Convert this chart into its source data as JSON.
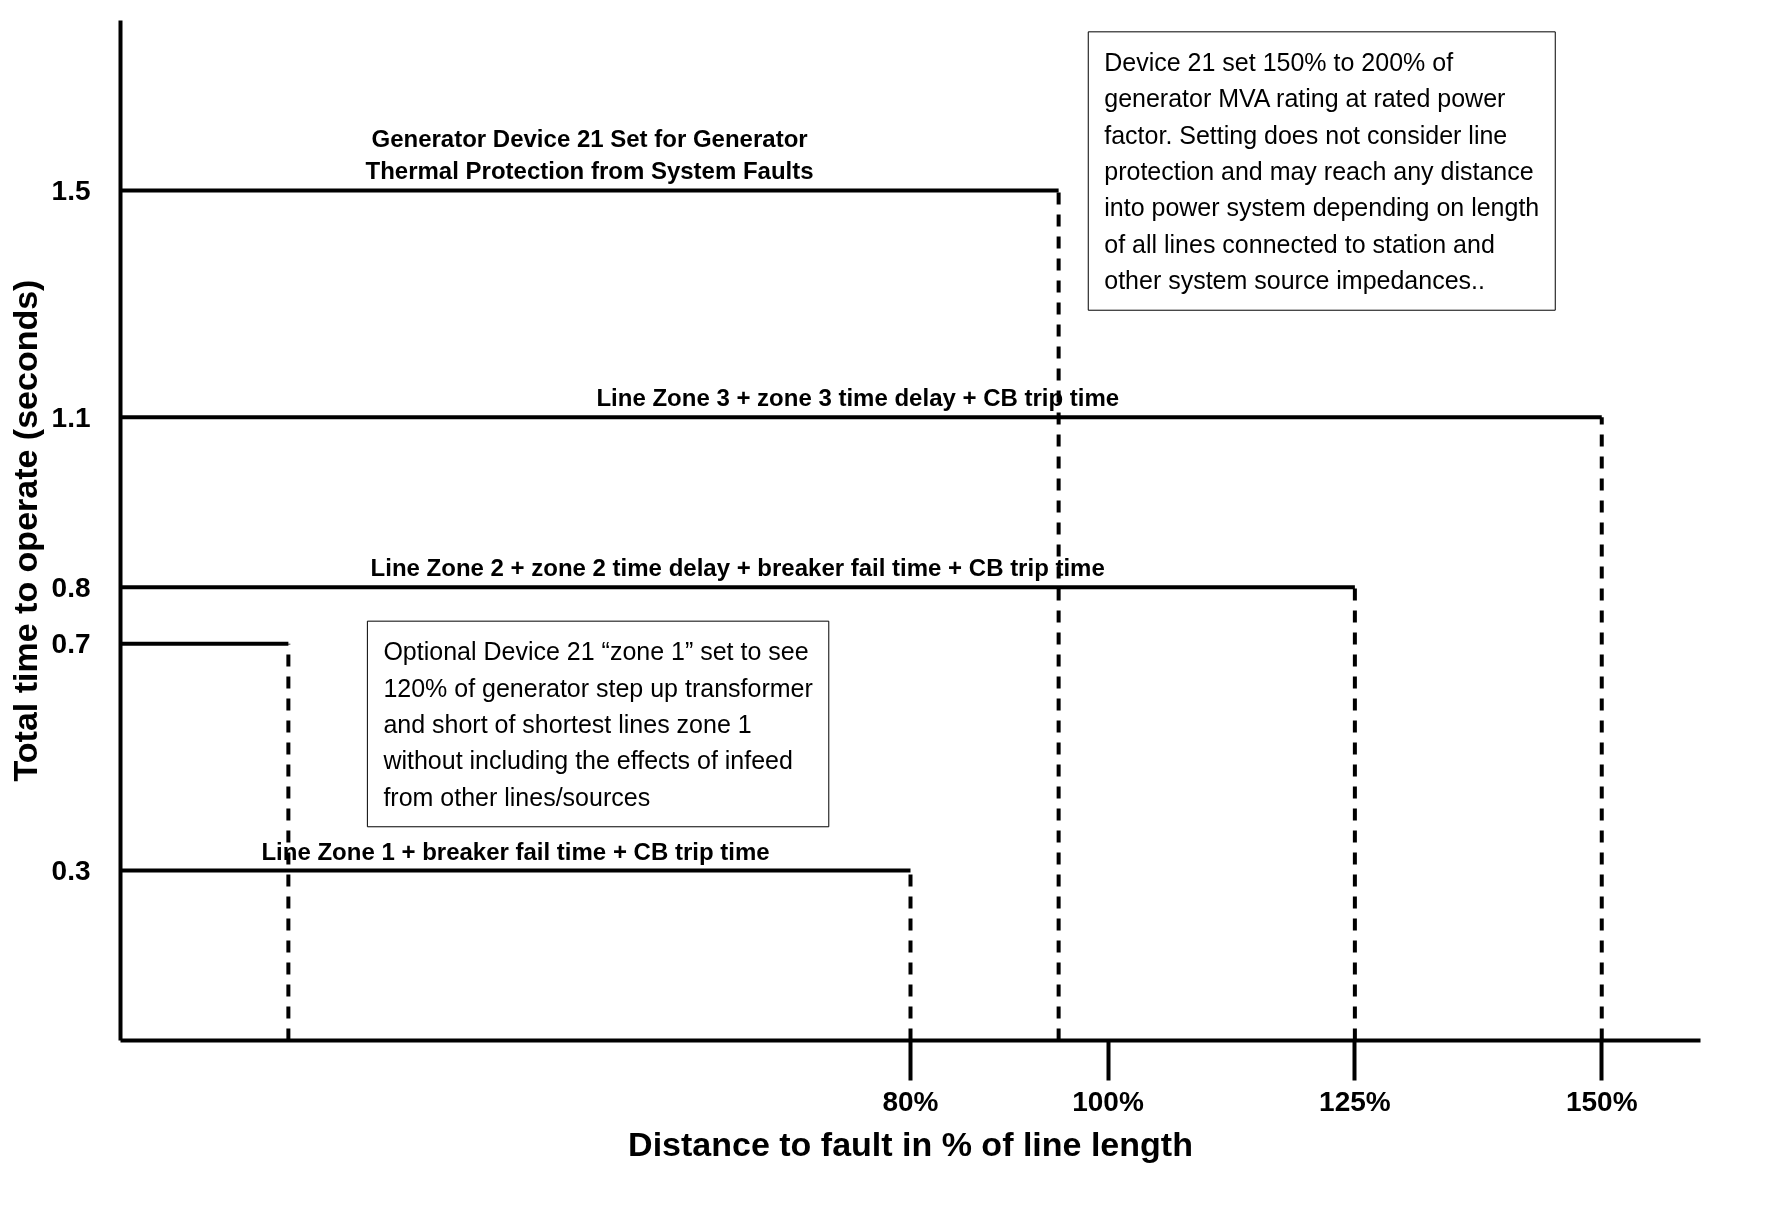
{
  "chart_data": {
    "type": "line",
    "xlabel": "Distance to fault in % of line length",
    "ylabel": "Total time to operate (seconds)",
    "xlim": [
      0,
      160
    ],
    "ylim": [
      0,
      1.8
    ],
    "xticks": [
      {
        "value": 80,
        "label": "80%"
      },
      {
        "value": 100,
        "label": "100%"
      },
      {
        "value": 125,
        "label": "125%"
      },
      {
        "value": 150,
        "label": "150%"
      }
    ],
    "yticks": [
      0.3,
      0.7,
      0.8,
      1.1,
      1.5
    ],
    "grid": false,
    "marker": "none",
    "line_style": "solid",
    "series": [
      {
        "name": "Generator Device 21 Set for Generator\nThermal Protection from System Faults",
        "color": "#000000",
        "x": [
          0,
          95
        ],
        "values": [
          1.5,
          1.5
        ]
      },
      {
        "name": "Line Zone 3 + zone 3  time delay + CB trip time",
        "color": "#000000",
        "x": [
          0,
          150
        ],
        "values": [
          1.1,
          1.1
        ]
      },
      {
        "name": "Line Zone 2 + zone 2 time delay + breaker fail time + CB trip time",
        "color": "#000000",
        "x": [
          0,
          125
        ],
        "values": [
          0.8,
          0.8
        ]
      },
      {
        "color": "#000000",
        "x": [
          0,
          17
        ],
        "values": [
          0.7,
          0.7
        ]
      },
      {
        "name": "Line Zone 1 + breaker fail time + CB trip time",
        "color": "#000000",
        "x": [
          0,
          80
        ],
        "values": [
          0.3,
          0.3
        ]
      },
      {
        "color": "#000000",
        "x": [
          95,
          95
        ],
        "values": [
          0,
          1.5
        ],
        "line_style": "dashed"
      },
      {
        "color": "#000000",
        "x": [
          150,
          150
        ],
        "values": [
          0,
          1.1
        ],
        "line_style": "dashed"
      },
      {
        "color": "#000000",
        "x": [
          125,
          125
        ],
        "values": [
          0,
          0.8
        ],
        "line_style": "dashed"
      },
      {
        "color": "#000000",
        "x": [
          17,
          17
        ],
        "values": [
          0,
          0.7
        ],
        "line_style": "dashed"
      },
      {
        "color": "#000000",
        "x": [
          80,
          80
        ],
        "values": [
          0,
          0.3
        ],
        "line_style": "dashed"
      }
    ],
    "annotations": [
      "Device 21 set 150% to 200% of\ngenerator MVA rating at rated power\nfactor.  Setting does not consider line\nprotection and may reach any distance\ninto power system depending on length\nof all lines connected to station and\nother system source impedances..",
      "Optional Device 21 “zone 1” set to see\n120% of generator step up transformer\nand short of shortest lines zone 1\nwithout  including the effects of infeed\nfrom other lines/sources"
    ]
  }
}
